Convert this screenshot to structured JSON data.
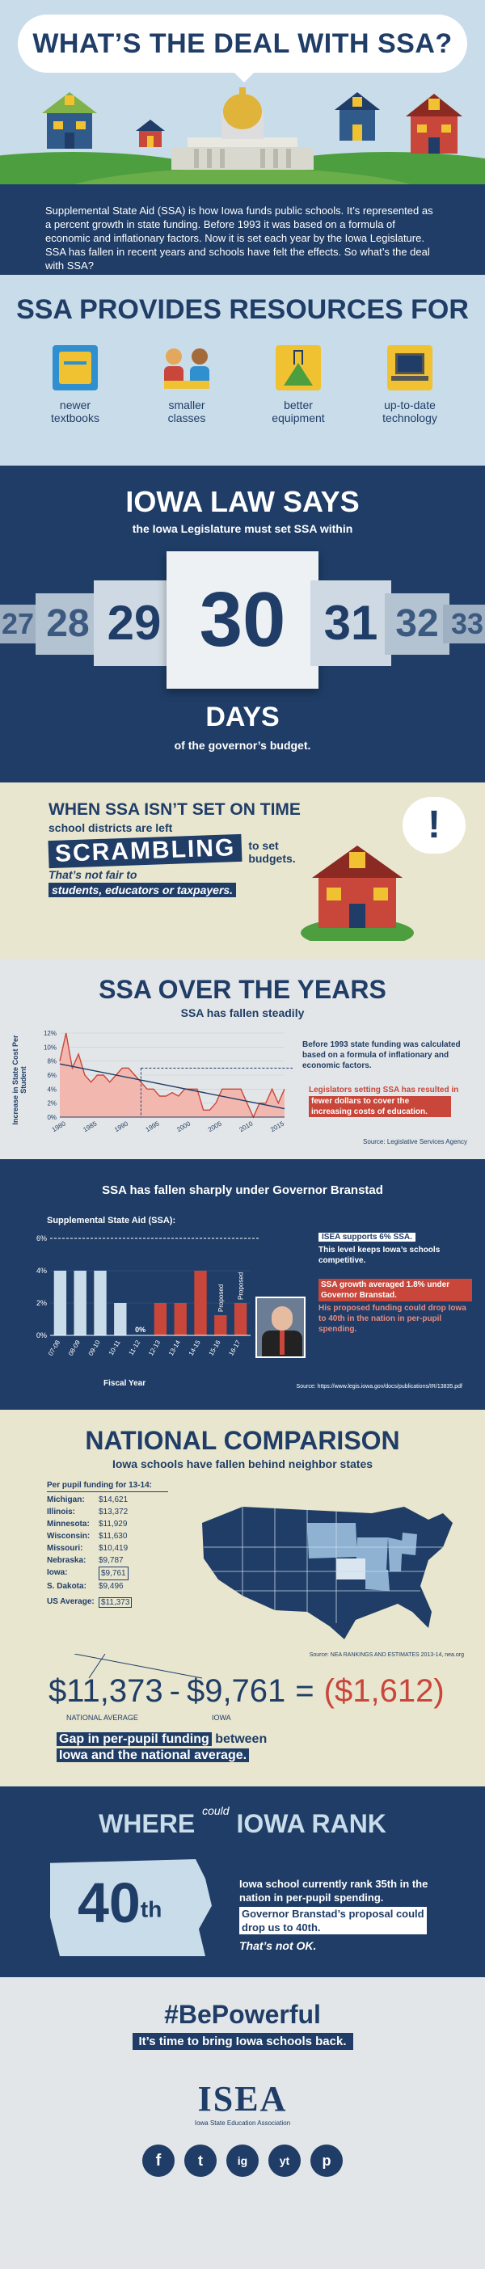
{
  "header": {
    "title": "WHAT’S THE DEAL WITH SSA?"
  },
  "intro": {
    "text": "Supplemental State Aid (SSA) is how Iowa funds public schools. It’s represented as a percent growth in state funding. Before 1993 it was based on a formula of economic and inflationary factors. Now it is set each year by the Iowa Legislature. SSA has fallen in recent years and schools have felt the effects. So what’s the deal with SSA?"
  },
  "resources": {
    "title": "SSA PROVIDES RESOURCES FOR",
    "items": [
      {
        "icon": "textbook-icon",
        "label": "newer textbooks"
      },
      {
        "icon": "class-icon",
        "label": "smaller classes"
      },
      {
        "icon": "flask-icon",
        "label": "better equipment"
      },
      {
        "icon": "laptop-icon",
        "label": "up-to-date technology"
      }
    ]
  },
  "law": {
    "title": "IOWA LAW SAYS",
    "subtitle": "the Iowa Legislature must set SSA within",
    "days": [
      "27",
      "28",
      "29",
      "30",
      "31",
      "32",
      "33"
    ],
    "days_word": "DAYS",
    "footer": "of the governor’s budget."
  },
  "scramble": {
    "title": "WHEN SSA ISN’T SET ON TIME",
    "line1": "school districts are left",
    "word": "SCRAMBLING",
    "line2": "to set budgets.",
    "line3": "That’s not fair to",
    "line4": "students, educators or taxpayers.",
    "bubble": "!"
  },
  "years": {
    "title": "SSA OVER THE YEARS",
    "subtitle": "SSA has fallen steadily",
    "note1": "Before 1993 state funding was calculated based on a formula of inflationary and economic factors.",
    "note2a": "Legislators setting SSA has resulted in",
    "note2b": "fewer dollars to cover the increasing costs of education.",
    "source": "Source: Legislative Services Agency"
  },
  "branstad": {
    "title": "SSA has fallen sharply under Governor Branstad",
    "chart_title": "Supplemental State Aid (SSA):",
    "xlabel": "Fiscal Year",
    "note1a": "ISEA supports 6% SSA.",
    "note1b": "This level keeps Iowa’s schools competitive.",
    "note2a": "SSA growth averaged 1.8% under Governor Branstad.",
    "note2b": "His proposed funding could drop Iowa to 40th in the nation in per-pupil spending.",
    "source": "Source: https://www.legis.iowa.gov/docs/publications/IR/13835.pdf",
    "proposed_label": "Proposed",
    "zero_label": "0%"
  },
  "national": {
    "title": "NATIONAL COMPARISON",
    "subtitle": "Iowa schools have fallen behind neighbor states",
    "table_title": "Per pupil funding for 13-14:",
    "states": [
      {
        "name": "Michigan:",
        "value": "$14,621"
      },
      {
        "name": "Illinois:",
        "value": "$13,372"
      },
      {
        "name": "Minnesota:",
        "value": "$11,929"
      },
      {
        "name": "Wisconsin:",
        "value": "$11,630"
      },
      {
        "name": "Missouri:",
        "value": "$10,419"
      },
      {
        "name": "Nebraska:",
        "value": "$9,787"
      },
      {
        "name": "Iowa:",
        "value": "$9,761"
      },
      {
        "name": "S. Dakota:",
        "value": "$9,496"
      }
    ],
    "us_label": "US Average:",
    "us_value": "$11,373",
    "source": "Source: NEA RANKINGS AND ESTIMATES 2013-14, nea.org",
    "eq_a": "$11,373",
    "eq_minus": "-",
    "eq_b": "$9,761",
    "eq_equals": "=",
    "eq_result": "($1,612)",
    "label_a": "NATIONAL AVERAGE",
    "label_b": "IOWA",
    "gap_a": "Gap in per-pupil funding",
    "gap_b": "between",
    "gap_c": "Iowa and the national average."
  },
  "rank": {
    "word_where": "WHERE",
    "word_could": "could",
    "word_rest": "IOWA RANK",
    "rank_num": "40",
    "rank_suffix": "th",
    "text1": "Iowa school currently rank 35th in the nation in per-pupil spending.",
    "text2": "Governor Branstad’s proposal could drop us to 40th.",
    "text3": "That’s not OK."
  },
  "footer": {
    "hashtag": "#BePowerful",
    "tagline": "It’s time to bring Iowa schools back.",
    "logo": "ISEA",
    "logo_sub": "Iowa State Education Association",
    "social": [
      "f",
      "t",
      "ig",
      "yt",
      "p"
    ]
  },
  "chart_data": [
    {
      "type": "area",
      "title": "SSA has fallen steadily",
      "ylabel": "Increase in State Cost Per Student",
      "xlabel": "",
      "x": [
        1980,
        1981,
        1982,
        1983,
        1984,
        1985,
        1986,
        1987,
        1988,
        1989,
        1990,
        1991,
        1992,
        1993,
        1994,
        1995,
        1996,
        1997,
        1998,
        1999,
        2000,
        2001,
        2002,
        2003,
        2004,
        2005,
        2006,
        2007,
        2008,
        2009,
        2010,
        2011,
        2012,
        2013,
        2014,
        2015,
        2016
      ],
      "values": [
        8,
        12,
        7,
        9,
        6,
        5,
        6,
        6,
        5,
        6,
        7,
        7,
        6,
        5,
        4,
        4,
        3,
        3,
        3.5,
        3,
        4,
        4,
        4,
        1,
        1,
        2,
        4,
        4,
        4,
        4,
        2,
        0,
        2,
        2,
        4,
        2,
        4
      ],
      "ylim": [
        0,
        12
      ],
      "yticks": [
        "0%",
        "2%",
        "4%",
        "6%",
        "8%",
        "10%",
        "12%"
      ],
      "xticks": [
        "1980",
        "1985",
        "1990",
        "1995",
        "2000",
        "2005",
        "2010",
        "2015"
      ],
      "trend_label": "decreasing"
    },
    {
      "type": "bar",
      "title": "Supplemental State Aid (SSA):",
      "categories": [
        "07-08",
        "08-09",
        "09-10",
        "10-11",
        "11-12",
        "12-13",
        "13-14",
        "14-15",
        "15-16",
        "16-17"
      ],
      "values": [
        4,
        4,
        4,
        2,
        0,
        2,
        2,
        4,
        1.25,
        2
      ],
      "colors": [
        "#c9dcea",
        "#c9dcea",
        "#c9dcea",
        "#c9dcea",
        "#c9dcea",
        "#c8463a",
        "#c8463a",
        "#c8463a",
        "#c8463a",
        "#c8463a"
      ],
      "proposed": [
        false,
        false,
        false,
        false,
        false,
        false,
        false,
        false,
        true,
        true
      ],
      "ylim": [
        0,
        6
      ],
      "yticks": [
        "0%",
        "2%",
        "4%",
        "6%"
      ],
      "reference_line": 6
    }
  ]
}
